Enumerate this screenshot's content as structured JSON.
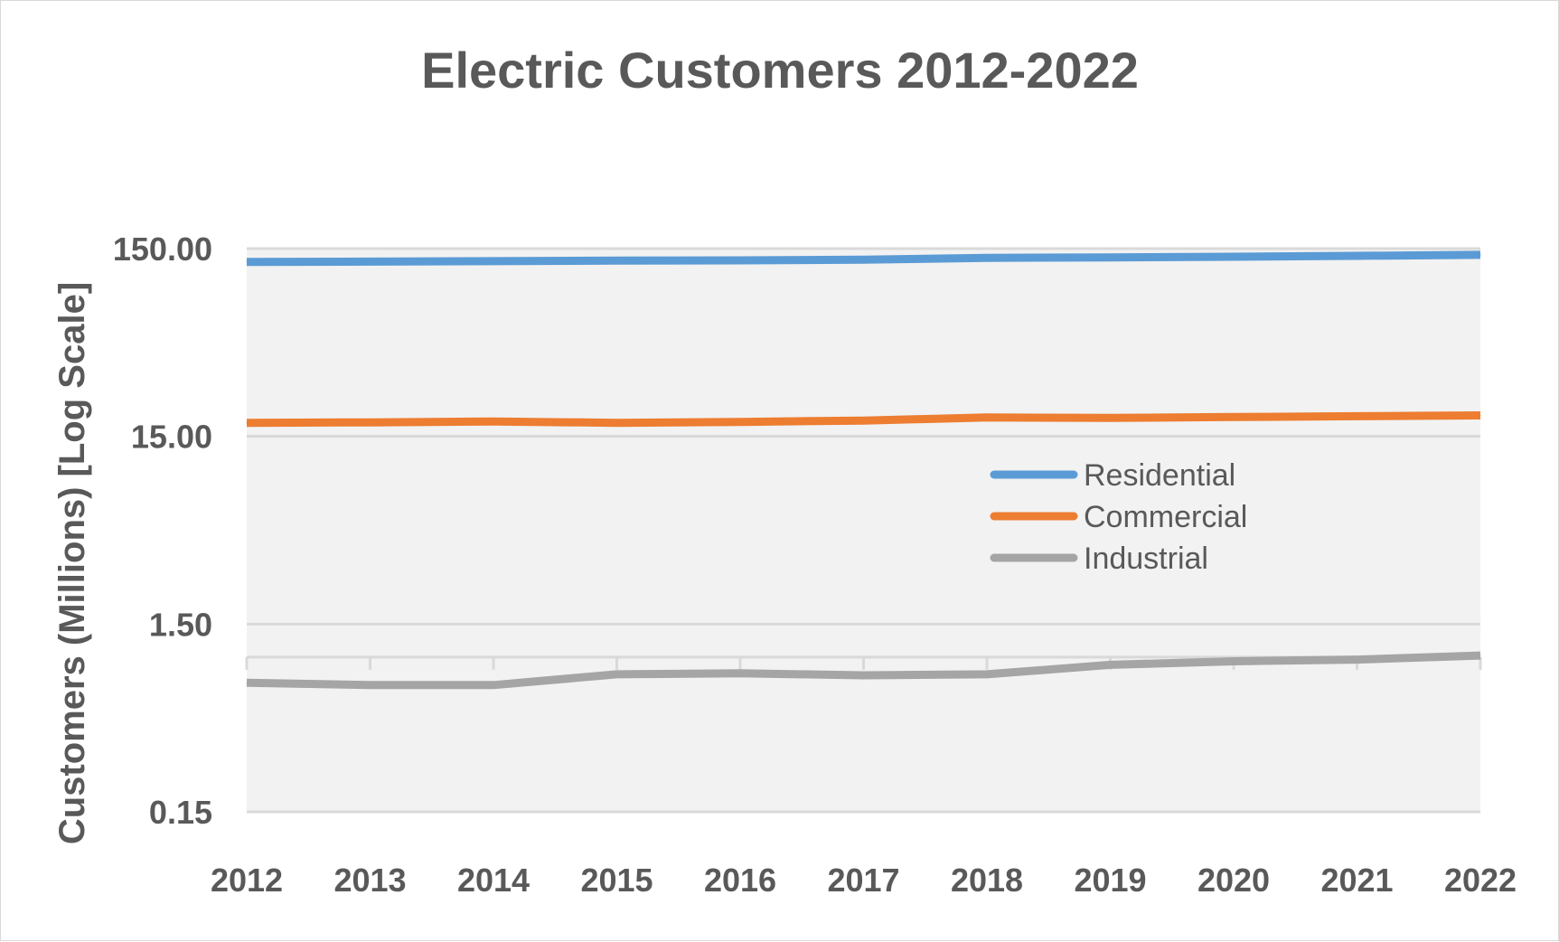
{
  "chart_data": {
    "type": "line",
    "title": "Electric Customers 2012-2022",
    "xlabel": "",
    "ylabel": "Customers (Millions) [Log Scale]",
    "y_scale": "log",
    "ylim": [
      0.15,
      150
    ],
    "y_ticks": [
      "150.00",
      "15.00",
      "1.50",
      "0.15"
    ],
    "x_axis_crosses_at": 1,
    "categories": [
      "2012",
      "2013",
      "2014",
      "2015",
      "2016",
      "2017",
      "2018",
      "2019",
      "2020",
      "2021",
      "2022"
    ],
    "series": [
      {
        "name": "Residential",
        "color": "#5B9BD5",
        "values": [
          127.5,
          127.8,
          128.6,
          129.5,
          129.8,
          130.9,
          133.9,
          134.7,
          135.8,
          137.2,
          139.0
        ]
      },
      {
        "name": "Commercial",
        "color": "#ED7D31",
        "values": [
          17.7,
          17.8,
          18.0,
          17.7,
          17.9,
          18.2,
          18.9,
          18.8,
          19.0,
          19.2,
          19.4
        ]
      },
      {
        "name": "Industrial",
        "color": "#A5A5A5",
        "values": [
          0.73,
          0.71,
          0.71,
          0.81,
          0.82,
          0.8,
          0.81,
          0.91,
          0.95,
          0.97,
          1.02
        ]
      }
    ],
    "grid": true,
    "legend_position": "inside-right"
  }
}
